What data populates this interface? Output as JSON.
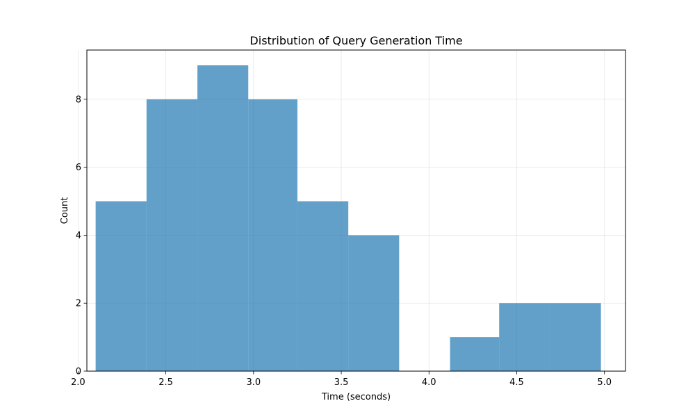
{
  "chart_data": {
    "type": "bar",
    "title": "Distribution of Query Generation Time",
    "xlabel": "Time (seconds)",
    "ylabel": "Count",
    "xlim": [
      2.05,
      5.12
    ],
    "ylim": [
      0,
      9.45
    ],
    "xticks": [
      "2.0",
      "2.5",
      "3.0",
      "3.5",
      "4.0",
      "4.5",
      "5.0"
    ],
    "yticks": [
      "0",
      "2",
      "4",
      "6",
      "8"
    ],
    "grid": true,
    "bar_color": "#1f77b4",
    "bar_alpha": 0.7,
    "bins": [
      {
        "x0": 2.1,
        "x1": 2.39,
        "count": 5
      },
      {
        "x0": 2.39,
        "x1": 2.68,
        "count": 8
      },
      {
        "x0": 2.68,
        "x1": 2.97,
        "count": 9
      },
      {
        "x0": 2.97,
        "x1": 3.25,
        "count": 8
      },
      {
        "x0": 3.25,
        "x1": 3.54,
        "count": 5
      },
      {
        "x0": 3.54,
        "x1": 3.83,
        "count": 4
      },
      {
        "x0": 3.83,
        "x1": 4.12,
        "count": 0
      },
      {
        "x0": 4.12,
        "x1": 4.4,
        "count": 1
      },
      {
        "x0": 4.4,
        "x1": 4.69,
        "count": 2
      },
      {
        "x0": 4.69,
        "x1": 4.98,
        "count": 2
      }
    ]
  }
}
